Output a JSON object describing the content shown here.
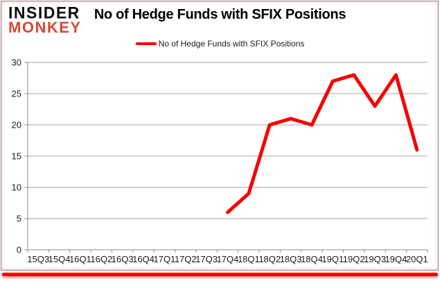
{
  "branding": {
    "name_line1": "INSIDER",
    "name_line2": "MONKEY",
    "monkey_color": "#d44b33"
  },
  "title": "No of Hedge Funds with SFIX Positions",
  "legend": {
    "label": "No of Hedge Funds with SFIX Positions"
  },
  "colors": {
    "line": "#f50000",
    "grid": "#a6a6a6",
    "axis": "#8c8c8c",
    "text": "#1a1a1a",
    "frame_border": "#8c8c8c",
    "accent_bar": "#ff0000"
  },
  "chart_data": {
    "type": "line",
    "title": "No of Hedge Funds with SFIX Positions",
    "categories": [
      "15Q3",
      "15Q4",
      "16Q1",
      "16Q2",
      "16Q3",
      "16Q4",
      "17Q1",
      "17Q2",
      "17Q3",
      "17Q4",
      "18Q1",
      "18Q2",
      "18Q3",
      "18Q4",
      "19Q1",
      "19Q2",
      "19Q3",
      "19Q4",
      "20Q1"
    ],
    "series": [
      {
        "name": "No of Hedge Funds with SFIX Positions",
        "color": "#f50000",
        "values": [
          null,
          null,
          null,
          null,
          null,
          null,
          null,
          null,
          null,
          6,
          9,
          20,
          21,
          20,
          27,
          28,
          23,
          28,
          16
        ]
      }
    ],
    "xlabel": "",
    "ylabel": "",
    "ylim": [
      0,
      30
    ],
    "ytick_step": 5,
    "grid": "horizontal",
    "legend_position": "top-center"
  }
}
